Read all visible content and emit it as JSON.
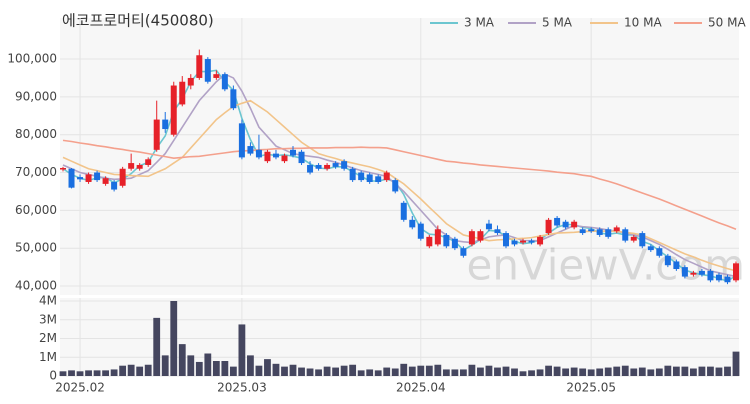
{
  "chart_data": {
    "type": "candlestick",
    "title": "에코프로머티(450080)",
    "watermark": "enViewV.com",
    "categories": [
      null,
      null,
      "2025.02",
      null,
      null,
      null,
      null,
      null,
      null,
      null,
      null,
      null,
      null,
      null,
      null,
      null,
      null,
      null,
      null,
      null,
      null,
      "2025.03",
      null,
      null,
      null,
      null,
      null,
      null,
      null,
      null,
      null,
      null,
      null,
      null,
      null,
      null,
      null,
      null,
      null,
      null,
      null,
      null,
      "2025.04",
      null,
      null,
      null,
      null,
      null,
      null,
      null,
      null,
      null,
      null,
      null,
      null,
      null,
      null,
      null,
      null,
      null,
      null,
      null,
      "2025.05",
      null,
      null,
      null,
      null,
      null,
      null,
      null,
      null,
      null,
      null,
      null,
      null,
      null,
      null,
      null,
      null,
      null
    ],
    "open": [
      70800,
      71000,
      68800,
      67500,
      70000,
      67000,
      67500,
      66500,
      71000,
      71000,
      72000,
      76000,
      84000,
      80000,
      88000,
      93000,
      95000,
      100000,
      95000,
      96000,
      92000,
      83000,
      77000,
      76000,
      73000,
      75000,
      73000,
      76000,
      75500,
      72000,
      72000,
      71000,
      72500,
      73000,
      71000,
      70000,
      69500,
      69000,
      68000,
      68000,
      62000,
      57500,
      56500,
      50500,
      51000,
      53500,
      52500,
      50000,
      51000,
      52000,
      56500,
      55000,
      54000,
      52000,
      51500,
      52000,
      51000,
      54000,
      58000,
      57000,
      55500,
      55000,
      55000,
      55000,
      55000,
      54500,
      55000,
      52000,
      54000,
      50500,
      50000,
      48000,
      46500,
      45000,
      43000,
      44000,
      44000,
      43000,
      42500,
      41500
    ],
    "high": [
      71500,
      71200,
      69500,
      70000,
      70500,
      69000,
      68000,
      71500,
      75000,
      72500,
      74000,
      89000,
      86000,
      94000,
      95500,
      96000,
      102500,
      100500,
      97000,
      96500,
      93000,
      84000,
      78000,
      80000,
      76000,
      76000,
      75000,
      77000,
      76000,
      73000,
      72500,
      72500,
      73000,
      73500,
      71500,
      70500,
      70000,
      69500,
      70500,
      68500,
      62500,
      58500,
      57000,
      53500,
      56000,
      54000,
      53000,
      50500,
      55000,
      55000,
      57500,
      56000,
      54500,
      52500,
      52500,
      52500,
      53500,
      58000,
      58500,
      57500,
      57500,
      55500,
      55500,
      55500,
      55500,
      56000,
      55500,
      53500,
      54500,
      51000,
      50500,
      48500,
      47000,
      45500,
      44000,
      44500,
      44500,
      43500,
      43000,
      46500
    ],
    "low": [
      70300,
      65800,
      67500,
      67000,
      67500,
      66500,
      65000,
      66000,
      70500,
      70500,
      71500,
      75500,
      80500,
      79500,
      87500,
      92000,
      94500,
      93500,
      94500,
      91500,
      86500,
      73500,
      74500,
      73500,
      72500,
      73500,
      72500,
      74000,
      72000,
      69500,
      70500,
      70500,
      71000,
      70500,
      67500,
      67500,
      67000,
      67000,
      67500,
      64500,
      57000,
      55000,
      52000,
      50000,
      50500,
      50000,
      49500,
      47500,
      50500,
      51500,
      54500,
      53500,
      50000,
      50500,
      51000,
      51000,
      50500,
      53500,
      55500,
      55000,
      55000,
      53500,
      54000,
      53000,
      52500,
      54000,
      51500,
      51500,
      50000,
      49000,
      47500,
      45000,
      44000,
      42000,
      42500,
      42500,
      41000,
      41000,
      40500,
      41000
    ],
    "close": [
      71200,
      66000,
      68200,
      69500,
      68000,
      68500,
      65500,
      71000,
      72500,
      72000,
      73500,
      84000,
      81500,
      93000,
      94000,
      95000,
      101000,
      94000,
      96000,
      92000,
      87000,
      74000,
      75000,
      74000,
      75500,
      74000,
      74500,
      74500,
      72500,
      70000,
      71000,
      72000,
      71500,
      71000,
      68000,
      68000,
      67500,
      67500,
      70000,
      65000,
      57500,
      55500,
      52500,
      53000,
      55000,
      50500,
      50000,
      48000,
      54500,
      54500,
      55000,
      54000,
      50500,
      51000,
      52000,
      51500,
      53000,
      57500,
      56000,
      55500,
      57000,
      54000,
      54500,
      53500,
      53000,
      55500,
      52000,
      53000,
      50500,
      49500,
      48000,
      45500,
      44500,
      42500,
      43500,
      43000,
      41500,
      41500,
      41000,
      46000
    ],
    "up_color": "#e62129",
    "down_color": "#1a6fe0",
    "series": [
      {
        "name": "3 MA",
        "color": "#6cc6d0",
        "values": [
          71000,
          69500,
          68500,
          67900,
          68600,
          68700,
          67300,
          68300,
          69700,
          71800,
          72700,
          76500,
          79700,
          86200,
          89500,
          94000,
          96700,
          96700,
          97000,
          94000,
          91700,
          84300,
          78700,
          74300,
          74800,
          74500,
          74700,
          74300,
          73800,
          72300,
          71200,
          71000,
          71500,
          71500,
          70200,
          69000,
          67800,
          67700,
          68300,
          67500,
          64200,
          59300,
          55200,
          53700,
          53500,
          52800,
          51800,
          49500,
          50800,
          52300,
          54700,
          54500,
          53200,
          51800,
          51200,
          51500,
          52200,
          54000,
          55500,
          56300,
          56200,
          55500,
          55200,
          54000,
          53700,
          54000,
          53500,
          53500,
          51800,
          51000,
          49300,
          47700,
          46000,
          44200,
          43500,
          43000,
          42700,
          42000,
          41300,
          42800
        ]
      },
      {
        "name": "5 MA",
        "color": "#b1a2c6",
        "values": [
          72000,
          71000,
          70000,
          69500,
          69000,
          68500,
          68200,
          68300,
          68500,
          69500,
          70500,
          72700,
          75000,
          78500,
          82000,
          85500,
          89000,
          91500,
          94000,
          96000,
          95000,
          91500,
          87000,
          82000,
          79500,
          77000,
          76000,
          75000,
          74600,
          74300,
          74000,
          73300,
          72700,
          72000,
          71200,
          70500,
          70000,
          69500,
          69000,
          67000,
          65000,
          62500,
          60000,
          57500,
          55000,
          53500,
          52000,
          51700,
          51500,
          52200,
          53000,
          53300,
          53500,
          52800,
          52000,
          52000,
          52000,
          53000,
          54000,
          55000,
          56000,
          55700,
          55500,
          55200,
          54800,
          54500,
          54000,
          53500,
          53000,
          52000,
          51000,
          49700,
          48300,
          47000,
          46000,
          45000,
          44000,
          43500,
          43000,
          42500
        ]
      },
      {
        "name": "10 MA",
        "color": "#f2c48a",
        "values": [
          74000,
          73000,
          72000,
          71000,
          70500,
          70000,
          69500,
          69400,
          69200,
          69100,
          69000,
          70000,
          71000,
          72500,
          74000,
          76500,
          79000,
          81500,
          84000,
          85800,
          87500,
          88300,
          89000,
          87500,
          86000,
          84000,
          82000,
          80000,
          78000,
          76500,
          75000,
          74300,
          73700,
          73000,
          72500,
          72000,
          71500,
          70800,
          70000,
          68500,
          67000,
          65000,
          63000,
          60800,
          58700,
          56500,
          55000,
          53500,
          53000,
          52500,
          52000,
          52200,
          52300,
          52500,
          52600,
          52800,
          53200,
          53600,
          54000,
          54100,
          54200,
          54400,
          54500,
          54500,
          54500,
          54500,
          54200,
          53900,
          53500,
          52500,
          51500,
          50500,
          49500,
          48500,
          47700,
          46800,
          46000,
          45300,
          44600,
          44000
        ]
      },
      {
        "name": "50 MA",
        "color": "#f4a08c",
        "values": [
          78500,
          78200,
          77800,
          77500,
          77100,
          76800,
          76400,
          76100,
          75700,
          75400,
          75000,
          74600,
          74200,
          73800,
          74000,
          74200,
          74300,
          74600,
          74900,
          75200,
          75500,
          75700,
          75800,
          76000,
          76100,
          76300,
          76300,
          76400,
          76400,
          76500,
          76500,
          76500,
          76600,
          76600,
          76600,
          76700,
          76600,
          76600,
          76500,
          76000,
          75500,
          75000,
          74500,
          74000,
          73500,
          73000,
          72800,
          72500,
          72300,
          72000,
          71800,
          71600,
          71400,
          71200,
          71000,
          70800,
          70600,
          70400,
          70100,
          69900,
          69700,
          69300,
          69000,
          68300,
          67700,
          67000,
          66200,
          65400,
          64600,
          63800,
          63000,
          62100,
          61200,
          60300,
          59400,
          58500,
          57600,
          56700,
          55900,
          55000
        ]
      }
    ],
    "ylim": [
      38000,
      110000
    ],
    "yticks": [
      {
        "value": 40000,
        "label": "40,000"
      },
      {
        "value": 50000,
        "label": "50,000"
      },
      {
        "value": 60000,
        "label": "60,000"
      },
      {
        "value": 70000,
        "label": "70,000"
      },
      {
        "value": 80000,
        "label": "80,000"
      },
      {
        "value": 90000,
        "label": "90,000"
      },
      {
        "value": 100000,
        "label": "100,000"
      }
    ],
    "grid": true,
    "legend": "top-right",
    "volume": {
      "type": "bar",
      "color": "#45465f",
      "values": [
        250000,
        300000,
        250000,
        300000,
        300000,
        300000,
        350000,
        550000,
        600000,
        500000,
        600000,
        3100000,
        1100000,
        4000000,
        1700000,
        1100000,
        750000,
        1200000,
        800000,
        800000,
        500000,
        2750000,
        1100000,
        550000,
        900000,
        650000,
        500000,
        600000,
        450000,
        400000,
        350000,
        500000,
        450000,
        550000,
        600000,
        300000,
        350000,
        300000,
        450000,
        400000,
        650000,
        500000,
        550000,
        550000,
        600000,
        350000,
        350000,
        350000,
        600000,
        450000,
        550000,
        450000,
        500000,
        400000,
        250000,
        300000,
        350000,
        550000,
        500000,
        400000,
        450000,
        400000,
        350000,
        400000,
        450000,
        500000,
        550000,
        400000,
        450000,
        350000,
        400000,
        550000,
        500000,
        500000,
        400000,
        500000,
        500000,
        450000,
        500000,
        1300000
      ],
      "ylim": [
        0,
        4000000
      ],
      "yticks": [
        0,
        {
          "value": 1000000,
          "label": "1M"
        },
        {
          "value": 2000000,
          "label": "2M"
        },
        {
          "value": 3000000,
          "label": "3M"
        },
        {
          "value": 4000000,
          "label": "4M"
        }
      ]
    }
  }
}
